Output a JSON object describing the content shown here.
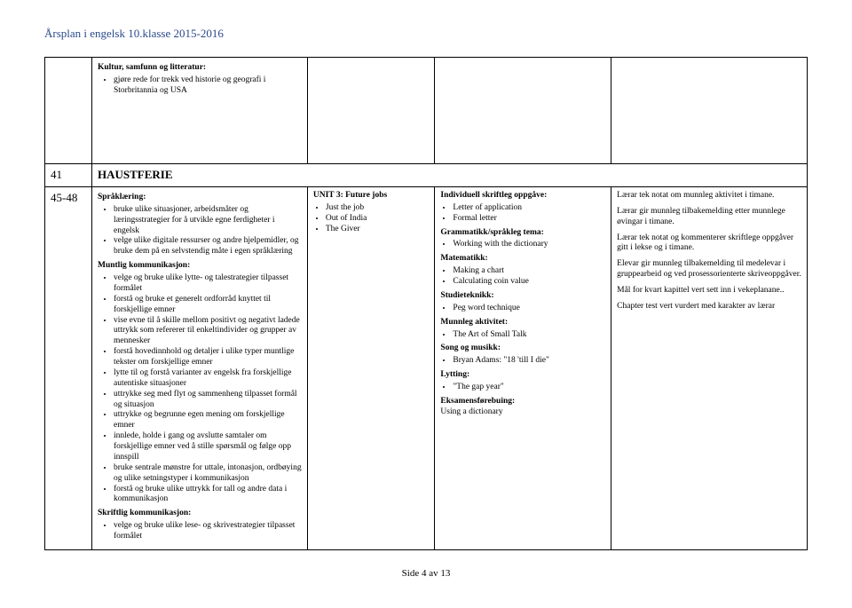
{
  "header": "Årsplan i engelsk 10.klasse  2015-2016",
  "topRow": {
    "title": "Kultur, samfunn og litteratur:",
    "items": [
      "gjøre rede for trekk ved historie og geografi i Storbritannia og USA"
    ]
  },
  "week1": "41",
  "haust": "HAUSTFERIE",
  "week2": "45-48",
  "colA": {
    "t1": "Språklæring:",
    "b1": [
      "bruke ulike situasjoner, arbeidsmåter og læringsstrategier for å utvikle egne ferdigheter i engelsk",
      "velge ulike digitale ressurser og andre hjelpemidler, og bruke dem på en selvstendig måte i egen språklæring"
    ],
    "t2": "Muntlig kommunikasjon:",
    "b2": [
      "velge og bruke ulike lytte- og talestrategier tilpasset formålet",
      "forstå og bruke et generelt ordforråd knyttet til forskjellige emner",
      "vise evne til å skille mellom positivt og negativt ladede uttrykk som refererer til enkeltindivider og grupper av mennesker",
      "forstå hovedinnhold og detaljer i ulike typer muntlige tekster om forskjellige emner",
      "lytte til og forstå varianter av engelsk fra forskjellige autentiske situasjoner",
      "uttrykke seg med flyt og sammenheng tilpasset formål og situasjon",
      "uttrykke og begrunne egen mening om forskjellige emner",
      "innlede, holde i gang og avslutte samtaler om forskjellige emner ved å stille spørsmål og følge opp innspill",
      "bruke sentrale mønstre for uttale, intonasjon, ordbøying og ulike setningstyper i kommunikasjon",
      "forstå og bruke ulike uttrykk for tall og andre data i kommunikasjon"
    ],
    "t3": "Skriftlig kommunikasjon:",
    "b3": [
      "velge og bruke ulike lese- og skrivestrategier tilpasset formålet"
    ]
  },
  "colB": {
    "title": "UNIT 3: Future jobs",
    "items": [
      "Just the job",
      "Out of India",
      "The Giver"
    ]
  },
  "colC": {
    "s1t": "Individuell skriftleg oppgåve:",
    "s1": [
      "Letter of application",
      "Formal letter"
    ],
    "s2t": "Grammatikk/språkleg tema:",
    "s2": [
      "Working with the dictionary"
    ],
    "s3t": "Matematikk:",
    "s3": [
      "Making a chart",
      "Calculating coin value"
    ],
    "s4t": "Studieteknikk:",
    "s4": [
      "Peg word technique"
    ],
    "s5t": "Munnleg aktivitet:",
    "s5": [
      "The Art of Small Talk"
    ],
    "s6t": "Song og musikk:",
    "s6": [
      "Bryan Adams: \"18 'till I die\""
    ],
    "s7t": "Lytting:",
    "s7": [
      "\"The gap year\""
    ],
    "s8t": "Eksamensførebuing:",
    "s8": "Using a dictionary"
  },
  "colD": {
    "p1": "Lærar tek notat om munnleg aktivitet i timane.",
    "p2": "Lærar gir munnleg tilbakemelding etter munnlege øvingar i timane.",
    "p3": "Lærar tek notat og kommenterer skriftlege oppgåver gitt i lekse og i timane.",
    "p4": "Elevar gir munnleg tilbakemelding til medelevar i gruppearbeid og ved prosessorienterte skriveoppgåver.",
    "p5": "Mål for kvart kapittel vert sett inn i vekeplanane..",
    "p6": "Chapter test  vert vurdert med karakter av lærar"
  },
  "footer": "Side 4 av 13"
}
